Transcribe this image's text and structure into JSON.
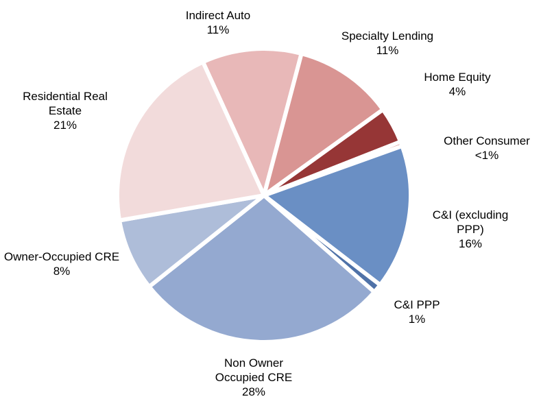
{
  "chart_data": {
    "type": "pie",
    "categories": [
      "Indirect Auto",
      "Specialty Lending",
      "Home Equity",
      "Other Consumer",
      "C&I (excluding PPP)",
      "C&I PPP",
      "Non Owner Occupied CRE",
      "Owner-Occupied CRE",
      "Residential Real Estate"
    ],
    "values": [
      11,
      11,
      4,
      0.5,
      16,
      1,
      28,
      8,
      21
    ],
    "value_labels": [
      "11%",
      "11%",
      "4%",
      "<1%",
      "16%",
      "1%",
      "28%",
      "8%",
      "21%"
    ],
    "colors": [
      "#e8b8b8",
      "#d99593",
      "#963636",
      "#c0504d",
      "#6a8fc4",
      "#4f72a8",
      "#94a9d0",
      "#aebdd9",
      "#f2dbdb"
    ]
  }
}
